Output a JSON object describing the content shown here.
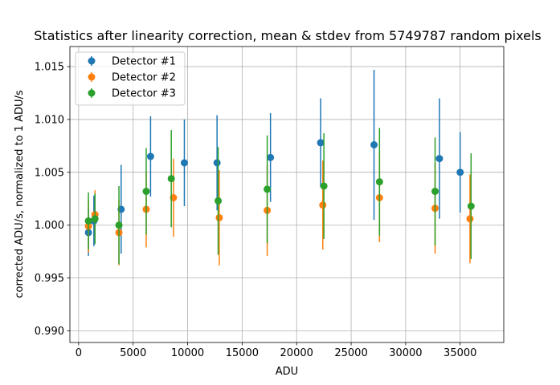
{
  "chart_data": {
    "type": "scatter",
    "title": "Statistics after linearity correction, mean & stdev from 5749787 random pixels",
    "xlabel": "ADU",
    "ylabel": "corrected ADU/s, normalized to 1 ADU/s",
    "xlim": [
      -800,
      39000
    ],
    "ylim": [
      0.9889,
      1.0169
    ],
    "xticks": [
      0,
      5000,
      10000,
      15000,
      20000,
      25000,
      30000,
      35000
    ],
    "yticks": [
      0.99,
      0.995,
      1.0,
      1.005,
      1.01,
      1.015
    ],
    "xtick_labels": [
      "0",
      "5000",
      "10000",
      "15000",
      "20000",
      "25000",
      "30000",
      "35000"
    ],
    "ytick_labels": [
      "0.990",
      "0.995",
      "1.000",
      "1.005",
      "1.010",
      "1.015"
    ],
    "grid": true,
    "legend_position": "top-left",
    "series": [
      {
        "name": "Detector #1",
        "color": "#1f77b4",
        "points": [
          {
            "x": 900,
            "y": 0.9993,
            "err": 0.0022
          },
          {
            "x": 1400,
            "y": 1.0004,
            "err": 0.0024
          },
          {
            "x": 3900,
            "y": 1.0015,
            "err": 0.0042
          },
          {
            "x": 6600,
            "y": 1.0065,
            "err": 0.0038
          },
          {
            "x": 9700,
            "y": 1.0059,
            "err": 0.0041
          },
          {
            "x": 12700,
            "y": 1.0059,
            "err": 0.0045
          },
          {
            "x": 17600,
            "y": 1.0064,
            "err": 0.0042
          },
          {
            "x": 22200,
            "y": 1.0078,
            "err": 0.0042
          },
          {
            "x": 27100,
            "y": 1.0076,
            "err": 0.0071
          },
          {
            "x": 33100,
            "y": 1.0063,
            "err": 0.0057
          },
          {
            "x": 35000,
            "y": 1.005,
            "err": 0.0038
          }
        ]
      },
      {
        "name": "Detector #2",
        "color": "#ff7f0e",
        "points": [
          {
            "x": 900,
            "y": 0.9999,
            "err": 0.0025
          },
          {
            "x": 1500,
            "y": 1.001,
            "err": 0.0023
          },
          {
            "x": 3700,
            "y": 0.9993,
            "err": 0.0031
          },
          {
            "x": 6200,
            "y": 1.0015,
            "err": 0.0036
          },
          {
            "x": 8700,
            "y": 1.0026,
            "err": 0.0037
          },
          {
            "x": 12900,
            "y": 1.0007,
            "err": 0.0045
          },
          {
            "x": 17300,
            "y": 1.0014,
            "err": 0.0043
          },
          {
            "x": 22400,
            "y": 1.0019,
            "err": 0.0042
          },
          {
            "x": 27600,
            "y": 1.0026,
            "err": 0.0042
          },
          {
            "x": 32700,
            "y": 1.0016,
            "err": 0.0043
          },
          {
            "x": 35900,
            "y": 1.0006,
            "err": 0.0042
          }
        ]
      },
      {
        "name": "Detector #3",
        "color": "#2ca02c",
        "points": [
          {
            "x": 900,
            "y": 1.0004,
            "err": 0.0027
          },
          {
            "x": 1500,
            "y": 1.0006,
            "err": 0.0024
          },
          {
            "x": 3700,
            "y": 1.0,
            "err": 0.0037
          },
          {
            "x": 6200,
            "y": 1.0032,
            "err": 0.0041
          },
          {
            "x": 8500,
            "y": 1.0044,
            "err": 0.0046
          },
          {
            "x": 12800,
            "y": 1.0023,
            "err": 0.0051
          },
          {
            "x": 17300,
            "y": 1.0034,
            "err": 0.0051
          },
          {
            "x": 22500,
            "y": 1.0037,
            "err": 0.005
          },
          {
            "x": 27600,
            "y": 1.0041,
            "err": 0.0051
          },
          {
            "x": 32700,
            "y": 1.0032,
            "err": 0.0051
          },
          {
            "x": 36000,
            "y": 1.0018,
            "err": 0.005
          }
        ]
      }
    ]
  }
}
